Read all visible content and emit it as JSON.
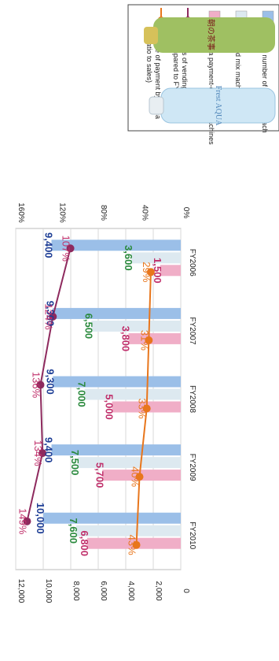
{
  "chart_data": {
    "type": "bar",
    "orientation": "rotated-90-clockwise",
    "categories": [
      "FY2006",
      "FY2007",
      "FY2008",
      "FY2009",
      "FY2010"
    ],
    "series": [
      {
        "name": "Total number of vending machines",
        "kind": "bar",
        "axis": "left",
        "color": "#9bbfe8",
        "values": [
          9400,
          9300,
          9300,
          9400,
          10000
        ],
        "labels": [
          "9,400",
          "9,300",
          "9,300",
          "9,400",
          "10,000"
        ],
        "label_color": "#1f3f96"
      },
      {
        "name": "Brand mix machines",
        "kind": "bar",
        "axis": "left",
        "color": "#dde9f0",
        "values": [
          3600,
          6500,
          7000,
          7500,
          7600
        ],
        "labels": [
          "3,600",
          "6,500",
          "7,000",
          "7,500",
          "7,600"
        ],
        "label_color": "#2b8a3e"
      },
      {
        "name": "Suica payment-enabled machines",
        "kind": "bar",
        "axis": "left",
        "color": "#f0aec7",
        "values": [
          1500,
          3800,
          5000,
          5700,
          6800
        ],
        "labels": [
          "1,500",
          "3,800",
          "5,000",
          "5,700",
          "6,800"
        ],
        "label_color": "#c0306b"
      },
      {
        "name": "Sales of vending machines (compared to FY 2005)",
        "kind": "line",
        "axis": "right",
        "color": "#8e2a5e",
        "values": [
          107,
          124,
          136,
          134,
          149
        ],
        "labels": [
          "107%",
          "124%",
          "136%",
          "134%",
          "149%"
        ],
        "label_color": "#c0306b"
      },
      {
        "name": "Rate of payment by Suica (ratio to sales)",
        "kind": "line",
        "axis": "right",
        "color": "#e8761c",
        "values": [
          29,
          31,
          33,
          40,
          43
        ],
        "labels": [
          "29%",
          "31%",
          "33%",
          "40%",
          "43%"
        ],
        "label_color": "#e8761c"
      }
    ],
    "left_axis": {
      "ticks": [
        "0",
        "2,000",
        "4,000",
        "6,000",
        "8,000",
        "10,000",
        "12,000"
      ],
      "ylim": [
        0,
        12000
      ]
    },
    "right_axis": {
      "ticks": [
        "0%",
        "40%",
        "80%",
        "120%",
        "160%"
      ],
      "ylim": [
        0,
        160
      ]
    },
    "grid": true,
    "legend_position": "top-right"
  },
  "products": [
    {
      "name": "tea-bottle",
      "label": "朝の茶事",
      "color": "#a7c66a"
    },
    {
      "name": "water-bottle",
      "label": "Frest AQUA",
      "color": "#c9e4f3"
    }
  ]
}
